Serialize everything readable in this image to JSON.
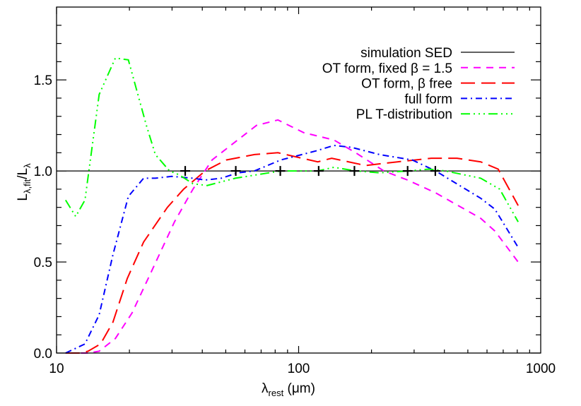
{
  "chart_data": {
    "type": "line",
    "title": "",
    "xlabel": "λ",
    "xlabel_sub": "rest",
    "xlabel_unit": " (μm)",
    "ylabel": "L",
    "ylabel_sub": "λ,fit",
    "ylabel_den": "/L",
    "ylabel_den_sub": "λ",
    "xscale": "log",
    "xlim": [
      10,
      1000
    ],
    "ylim": [
      0,
      1.9
    ],
    "grid": false,
    "legend_position": "top-right",
    "xticks": [
      {
        "value": 10,
        "label": "10"
      },
      {
        "value": 100,
        "label": "100"
      },
      {
        "value": 1000,
        "label": "1000"
      }
    ],
    "yticks": [
      {
        "value": 0,
        "label": "0.0"
      },
      {
        "value": 0.5,
        "label": "0.5"
      },
      {
        "value": 1.0,
        "label": "1.0"
      },
      {
        "value": 1.5,
        "label": "1.5"
      }
    ],
    "reference_line": 1.0,
    "markers": {
      "symbol": "+",
      "x": [
        34,
        55,
        84,
        121,
        170,
        282,
        367
      ],
      "y": [
        1,
        1,
        1,
        1,
        1,
        1,
        1
      ]
    },
    "series": [
      {
        "name": "simulation SED",
        "color": "#000000",
        "style": "solid",
        "x": [
          10,
          1000
        ],
        "y": [
          1.0,
          1.0
        ]
      },
      {
        "name": "OT form, fixed β = 1.5",
        "color": "#ff00ff",
        "style": "dashed",
        "x": [
          12.6,
          13.5,
          15.0,
          17.5,
          20.5,
          25.1,
          30.7,
          36.6,
          43.9,
          54.8,
          67.0,
          82.1,
          105,
          140,
          172,
          225,
          282,
          368,
          565,
          647,
          807
        ],
        "y": [
          0.0,
          0.0,
          0.01,
          0.08,
          0.22,
          0.47,
          0.72,
          0.9,
          1.06,
          1.16,
          1.25,
          1.28,
          1.21,
          1.17,
          1.1,
          1.0,
          0.95,
          0.88,
          0.74,
          0.67,
          0.5
        ]
      },
      {
        "name": "OT form, β free",
        "color": "#ff0000",
        "style": "long-dash",
        "x": [
          10.9,
          12.5,
          13.5,
          15.2,
          17.1,
          19.6,
          22.9,
          28.7,
          33.5,
          41.1,
          50.2,
          65.7,
          82.1,
          120,
          137,
          189,
          256,
          353,
          451,
          565,
          667,
          807
        ],
        "y": [
          0.0,
          0.0,
          0.01,
          0.05,
          0.17,
          0.41,
          0.61,
          0.8,
          0.9,
          1.0,
          1.06,
          1.09,
          1.1,
          1.05,
          1.07,
          1.03,
          1.05,
          1.07,
          1.07,
          1.05,
          1.01,
          0.81
        ]
      },
      {
        "name": "full form",
        "color": "#0000ff",
        "style": "dash-dot",
        "x": [
          10.9,
          13.1,
          15.0,
          17.1,
          19.8,
          22.9,
          25.6,
          29.9,
          36.6,
          41.1,
          47.9,
          56.2,
          65.7,
          84.3,
          118,
          140,
          165,
          216,
          295,
          368,
          565,
          647,
          807
        ],
        "y": [
          0.0,
          0.05,
          0.21,
          0.54,
          0.86,
          0.96,
          0.96,
          0.97,
          0.96,
          0.95,
          0.96,
          0.99,
          1.0,
          1.06,
          1.11,
          1.14,
          1.13,
          1.09,
          1.06,
          1.0,
          0.85,
          0.79,
          0.58
        ]
      },
      {
        "name": "PL T-distribution",
        "color": "#00ff00",
        "style": "dash-dot-dot-dot",
        "x": [
          10.9,
          12.0,
          13.1,
          15.0,
          17.5,
          19.8,
          23.5,
          25.6,
          29.3,
          32.0,
          36.6,
          41.9,
          54.8,
          84.3,
          120,
          140,
          172,
          216,
          282,
          346,
          404,
          565,
          677,
          807
        ],
        "y": [
          0.84,
          0.75,
          0.84,
          1.42,
          1.62,
          1.61,
          1.25,
          1.09,
          1.0,
          0.98,
          0.93,
          0.92,
          0.96,
          1.0,
          1.0,
          1.02,
          1.0,
          0.99,
          1.0,
          1.01,
          1.0,
          0.96,
          0.9,
          0.72
        ]
      }
    ]
  }
}
